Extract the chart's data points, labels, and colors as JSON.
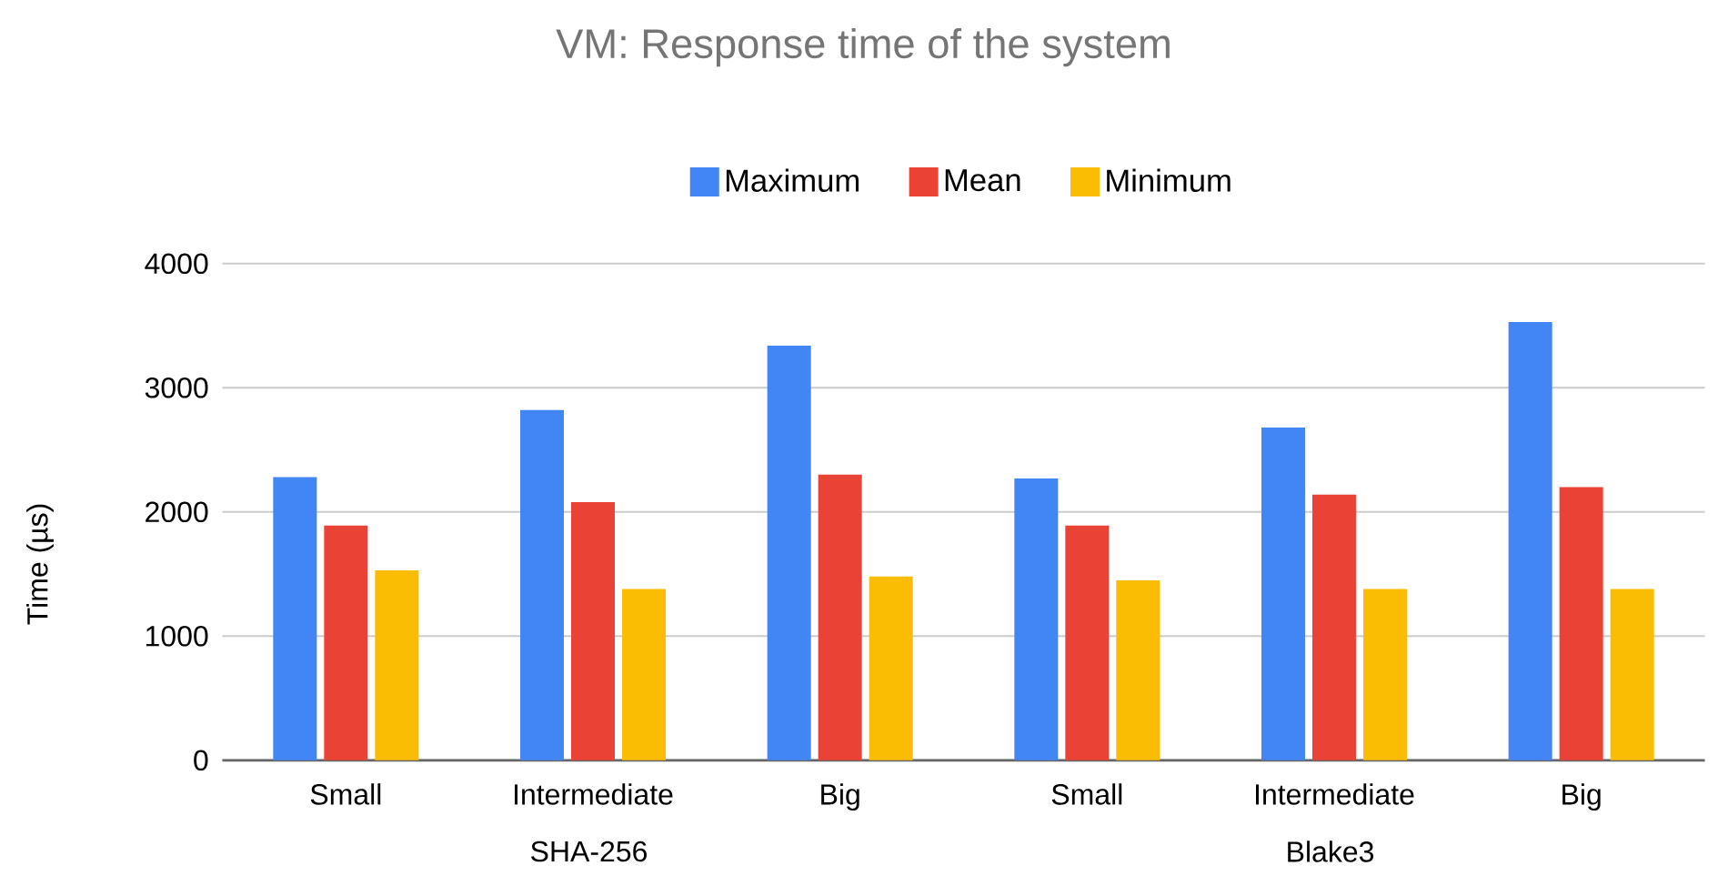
{
  "chart_data": {
    "type": "bar",
    "title": "VM: Response time of the system",
    "ylabel": "Time (µs)",
    "categories": [
      "Small",
      "Intermediate",
      "Big",
      "Small",
      "Intermediate",
      "Big"
    ],
    "series": [
      {
        "name": "Maximum",
        "color": "#4285f4",
        "values": [
          2280,
          2820,
          3340,
          2270,
          2680,
          3530
        ]
      },
      {
        "name": "Mean",
        "color": "#ea4335",
        "values": [
          1890,
          2080,
          2300,
          1890,
          2140,
          2200
        ]
      },
      {
        "name": "Minimum",
        "color": "#fbbc04",
        "values": [
          1530,
          1380,
          1480,
          1450,
          1380,
          1380
        ]
      }
    ],
    "annotations": [
      "SHA-256",
      "Blake3"
    ],
    "ylim": [
      0,
      4000
    ],
    "yticks": [
      0,
      1000,
      2000,
      3000,
      4000
    ],
    "grid": "y",
    "legend": "top"
  }
}
